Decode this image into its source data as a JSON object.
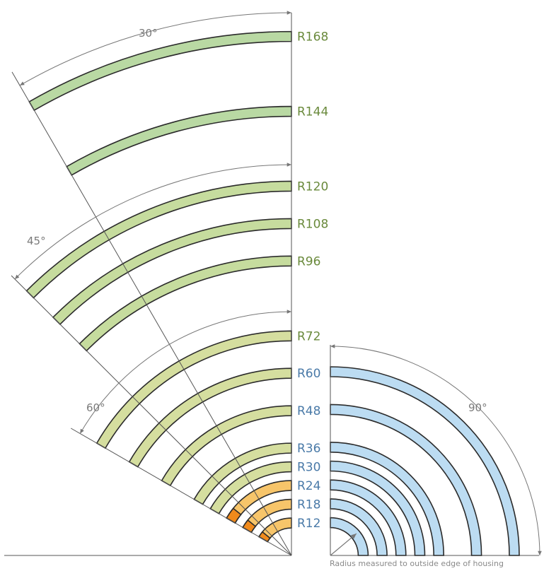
{
  "left_group": {
    "radius_labels": [
      "R168",
      "R144",
      "R120",
      "R108",
      "R96",
      "R72",
      "R60",
      "R48",
      "R36",
      "R30",
      "R24",
      "R18",
      "R12"
    ],
    "angle_labels": [
      "30°",
      "45°",
      "60°"
    ],
    "arcs": [
      {
        "label": "R168",
        "sweep_deg": 30,
        "fill": "#b9d9a3"
      },
      {
        "label": "R144",
        "sweep_deg": 30,
        "fill": "#b9d9a3"
      },
      {
        "label": "R120",
        "sweep_deg": 45,
        "fill": "#c6dc9e"
      },
      {
        "label": "R108",
        "sweep_deg": 45,
        "fill": "#c6dc9e"
      },
      {
        "label": "R96",
        "sweep_deg": 45,
        "fill": "#c6dc9e"
      },
      {
        "label": "R72",
        "sweep_deg": 60,
        "fill": "#d5de9f"
      },
      {
        "label": "R60",
        "sweep_deg": 60,
        "fill": "#d5de9f"
      },
      {
        "label": "R48",
        "sweep_deg": 60,
        "fill": "#d5de9f"
      },
      {
        "label": "R36",
        "sweep_deg": 60,
        "fill": "#d5de9f"
      },
      {
        "label": "R30",
        "sweep_deg": 60,
        "fill": "#d5de9f"
      },
      {
        "label": "R24",
        "sweep_deg": 60,
        "fill": "#f7c56a"
      },
      {
        "label": "R18",
        "sweep_deg": 60,
        "fill": "#f7c56a"
      },
      {
        "label": "R12",
        "sweep_deg": 60,
        "fill": "#f7c56a"
      }
    ]
  },
  "right_group": {
    "angle_label": "90°",
    "note": "Radius measured to outside edge of housing",
    "arcs": [
      {
        "label": "R60",
        "sweep_deg": 90,
        "fill": "#bcdcf2"
      },
      {
        "label": "R48",
        "sweep_deg": 90,
        "fill": "#bcdcf2"
      },
      {
        "label": "R36",
        "sweep_deg": 90,
        "fill": "#bcdcf2"
      },
      {
        "label": "R30",
        "sweep_deg": 90,
        "fill": "#bcdcf2"
      },
      {
        "label": "R24",
        "sweep_deg": 90,
        "fill": "#bcdcf2"
      },
      {
        "label": "R18",
        "sweep_deg": 90,
        "fill": "#bcdcf2"
      },
      {
        "label": "R12",
        "sweep_deg": 90,
        "fill": "#bcdcf2"
      }
    ]
  },
  "colors": {
    "green_label": "#6a8a3c",
    "blue_label": "#4a7aa8",
    "stroke": "#2b2b2b",
    "dim_line": "#777777",
    "orange_tips": "#f08a1c"
  }
}
